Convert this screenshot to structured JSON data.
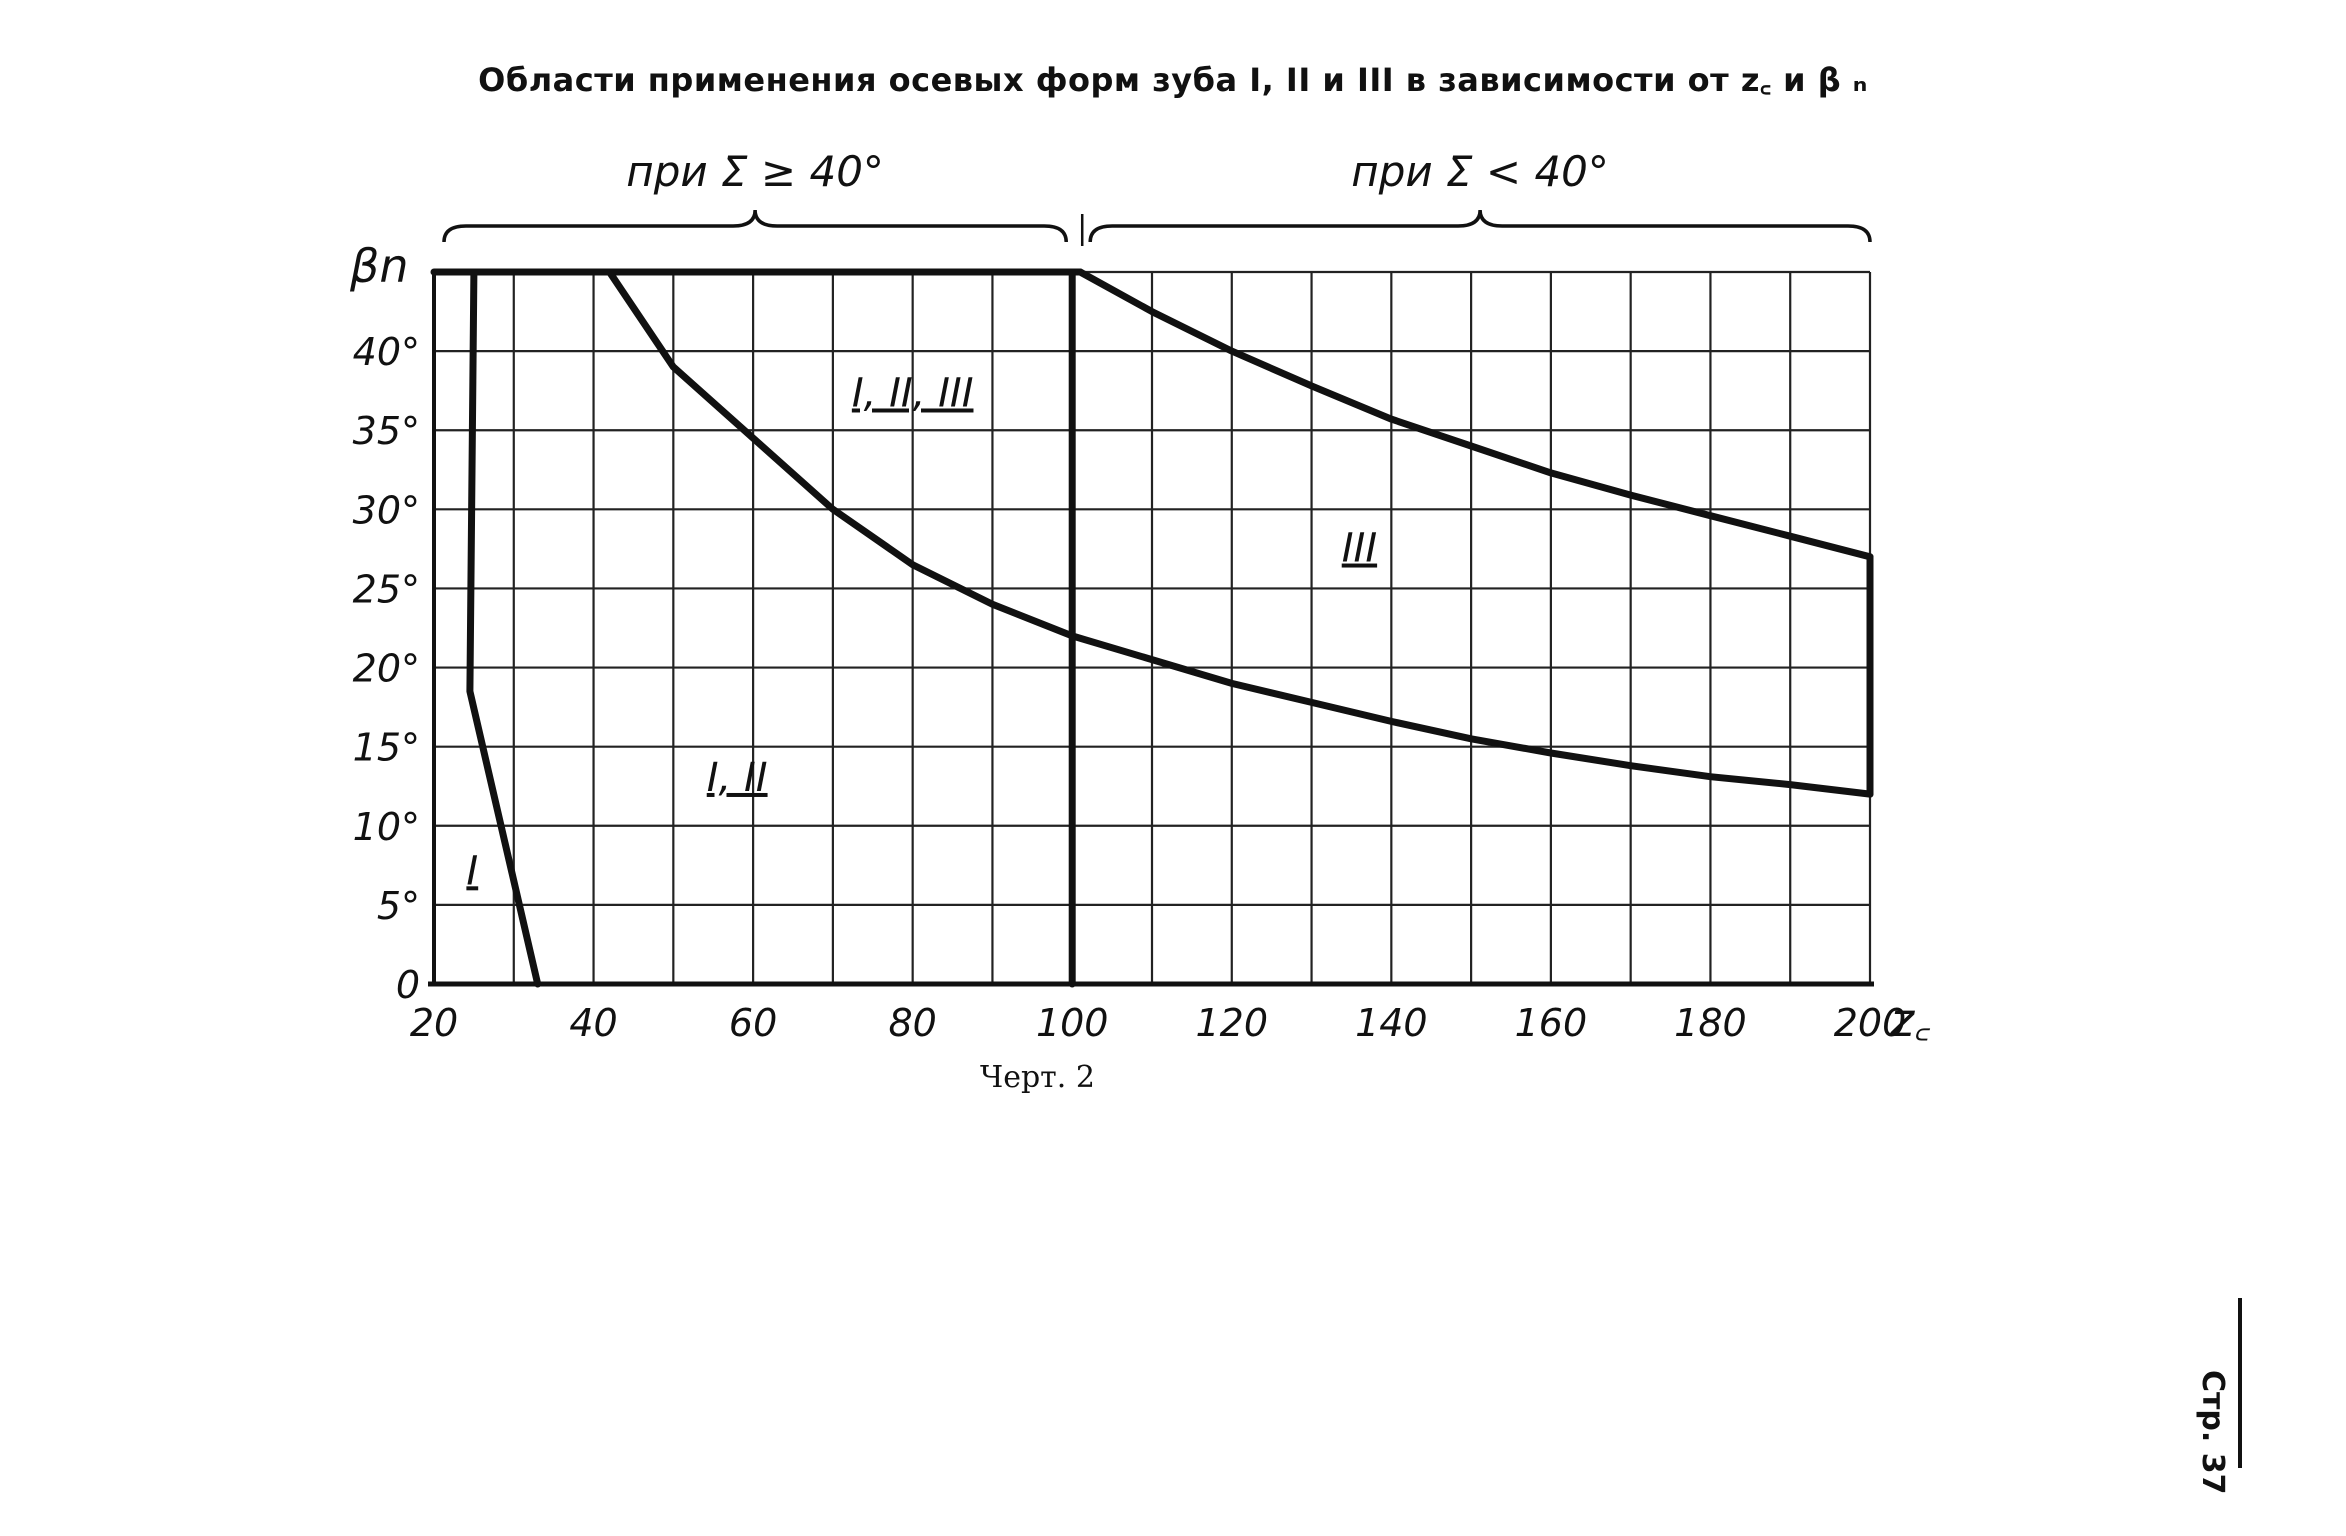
{
  "title": "Области применения осевых форм зуба I, II и III в зависимости от z꜀ и β ₙ",
  "caption": "Черт. 2",
  "page_number": "Стр. 37",
  "chart_data": {
    "type": "line",
    "title": "Области применения осевых форм зуба I, II и III в зависимости от z꜀ и β ₙ",
    "xlabel": "z꜀",
    "ylabel": "βn",
    "xlim": [
      20,
      200
    ],
    "ylim": [
      0,
      45
    ],
    "grid": true,
    "x_ticks": [
      {
        "value": 20,
        "label": "20"
      },
      {
        "value": 40,
        "label": "40"
      },
      {
        "value": 60,
        "label": "60"
      },
      {
        "value": 80,
        "label": "80"
      },
      {
        "value": 100,
        "label": "100"
      },
      {
        "value": 120,
        "label": "120"
      },
      {
        "value": 140,
        "label": "140"
      },
      {
        "value": 160,
        "label": "160"
      },
      {
        "value": 180,
        "label": "180"
      },
      {
        "value": 200,
        "label": "200"
      }
    ],
    "y_ticks": [
      {
        "value": 0,
        "label": "0"
      },
      {
        "value": 5,
        "label": "5°"
      },
      {
        "value": 10,
        "label": "10°"
      },
      {
        "value": 15,
        "label": "15°"
      },
      {
        "value": 20,
        "label": "20°"
      },
      {
        "value": 25,
        "label": "25°"
      },
      {
        "value": 30,
        "label": "30°"
      },
      {
        "value": 35,
        "label": "35°"
      },
      {
        "value": 40,
        "label": "40°"
      }
    ],
    "sections": [
      {
        "label": "при  Σ ≥ 40°",
        "x_range": [
          20,
          100
        ]
      },
      {
        "label": "при  Σ < 40°",
        "x_range": [
          101,
          200
        ]
      }
    ],
    "boundaries": [
      {
        "id": "boundary-i-left",
        "points": [
          [
            25,
            45
          ],
          [
            24.5,
            18.5
          ],
          [
            33,
            0
          ]
        ]
      },
      {
        "id": "boundary-i-ii-iii",
        "points": [
          [
            42,
            45
          ],
          [
            50,
            39
          ],
          [
            60,
            34.5
          ],
          [
            70,
            30
          ],
          [
            80,
            26.5
          ],
          [
            90,
            24
          ],
          [
            100,
            22
          ]
        ]
      },
      {
        "id": "boundary-iii-upper",
        "points": [
          [
            101,
            45
          ],
          [
            110,
            42.5
          ],
          [
            120,
            40
          ],
          [
            130,
            37.8
          ],
          [
            140,
            35.7
          ],
          [
            150,
            34
          ],
          [
            160,
            32.3
          ],
          [
            170,
            30.9
          ],
          [
            180,
            29.6
          ],
          [
            190,
            28.3
          ],
          [
            200,
            27
          ]
        ]
      },
      {
        "id": "boundary-iii-lower",
        "points": [
          [
            100,
            22
          ],
          [
            110,
            20.5
          ],
          [
            120,
            19
          ],
          [
            130,
            17.8
          ],
          [
            140,
            16.6
          ],
          [
            150,
            15.5
          ],
          [
            160,
            14.6
          ],
          [
            170,
            13.8
          ],
          [
            180,
            13.1
          ],
          [
            190,
            12.6
          ],
          [
            200,
            12
          ]
        ]
      },
      {
        "id": "boundary-top",
        "points": [
          [
            20,
            45
          ],
          [
            101,
            45
          ]
        ]
      },
      {
        "id": "boundary-divider",
        "points": [
          [
            100,
            45
          ],
          [
            100,
            0
          ]
        ]
      },
      {
        "id": "boundary-right",
        "points": [
          [
            200,
            27
          ],
          [
            200,
            12
          ]
        ]
      }
    ],
    "regions": [
      {
        "label": "I",
        "x": 24.8,
        "y": 6.3
      },
      {
        "label": "I, II",
        "x": 58,
        "y": 12.2
      },
      {
        "label": "I, II, III",
        "x": 80,
        "y": 36.5
      },
      {
        "label": "III",
        "x": 136,
        "y": 26.7
      }
    ]
  }
}
